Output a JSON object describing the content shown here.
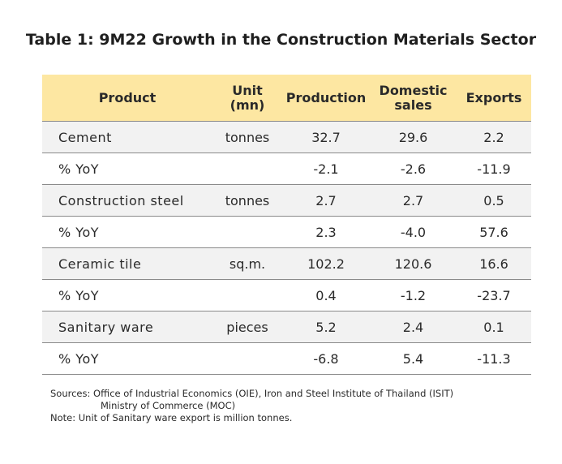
{
  "title": "Table 1: 9M22 Growth in the Construction Materials Sector",
  "table": {
    "headers": {
      "product": "Product",
      "unit_line1": "Unit",
      "unit_line2": "(mn)",
      "production": "Production",
      "domestic_line1": "Domestic",
      "domestic_line2": "sales",
      "exports": "Exports"
    },
    "rows": [
      {
        "product": "Cement",
        "unit": "tonnes",
        "production": "32.7",
        "domestic": "29.6",
        "exports": "2.2"
      },
      {
        "product": "% YoY",
        "unit": "",
        "production": "-2.1",
        "domestic": "-2.6",
        "exports": "-11.9"
      },
      {
        "product": "Construction steel",
        "unit": "tonnes",
        "production": "2.7",
        "domestic": "2.7",
        "exports": "0.5"
      },
      {
        "product": "% YoY",
        "unit": "",
        "production": "2.3",
        "domestic": "-4.0",
        "exports": "57.6"
      },
      {
        "product": "Ceramic tile",
        "unit": "sq.m.",
        "production": "102.2",
        "domestic": "120.6",
        "exports": "16.6"
      },
      {
        "product": "% YoY",
        "unit": "",
        "production": "0.4",
        "domestic": "-1.2",
        "exports": "-23.7"
      },
      {
        "product": "Sanitary ware",
        "unit": "pieces",
        "production": "5.2",
        "domestic": "2.4",
        "exports": "0.1"
      },
      {
        "product": "% YoY",
        "unit": "",
        "production": "-6.8",
        "domestic": "5.4",
        "exports": "-11.3"
      }
    ]
  },
  "notes": {
    "sources_line1": "Sources: Office of Industrial Economics (OIE), Iron and Steel Institute of Thailand (ISIT)",
    "sources_line2": "Ministry of Commerce (MOC)",
    "note": "Note: Unit of Sanitary ware export is million tonnes."
  },
  "colors": {
    "header_bg": "#fde7a2",
    "shaded_row_bg": "#f2f2f2",
    "rule": "#8a8a8a"
  }
}
